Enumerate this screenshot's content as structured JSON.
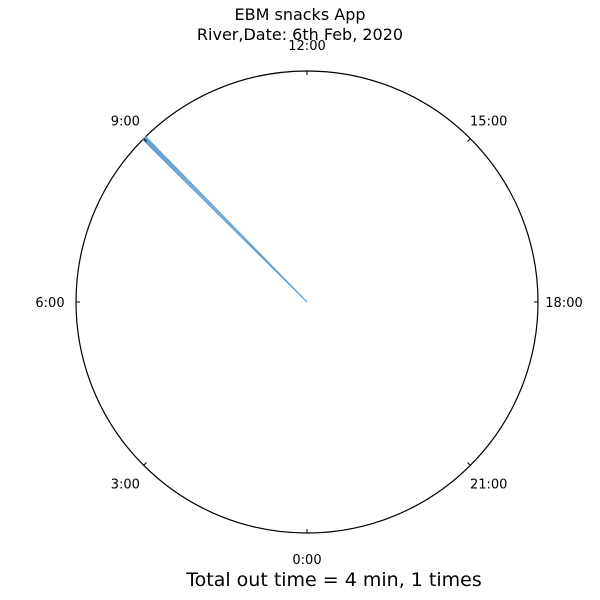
{
  "title_line1": "EBM snacks App",
  "title_line2": "River,Date: 6th Feb, 2020",
  "footer_text": "Total out time = 4 min, 1 times",
  "chart_data": {
    "type": "polar-clock",
    "title": "EBM snacks App\nRiver,Date: 6th Feb, 2020",
    "hour_range": [
      0,
      24
    ],
    "zero_at": "bottom",
    "direction": "clockwise",
    "tick_labels": [
      "0:00",
      "3:00",
      "6:00",
      "9:00",
      "12:00",
      "15:00",
      "18:00",
      "21:00"
    ],
    "tick_hours": [
      0,
      3,
      6,
      9,
      12,
      15,
      18,
      21
    ],
    "events": [
      {
        "start_hour": 8.98,
        "duration_min": 4
      }
    ],
    "total_out_minutes": 4,
    "times": 1,
    "colors": {
      "wedge": "#5f9ed1",
      "circle": "#000000"
    }
  }
}
